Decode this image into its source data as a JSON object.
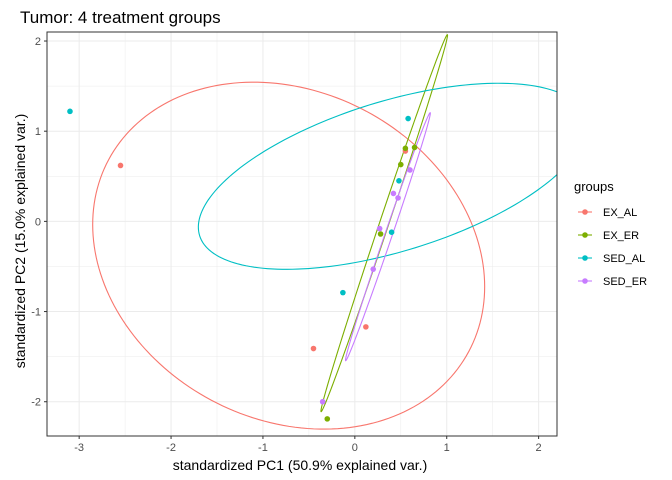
{
  "chart_data": {
    "type": "scatter",
    "title": "Tumor: 4 treatment groups",
    "xlabel": "standardized PC1 (50.9% explained var.)",
    "ylabel": "standardized PC2 (15.0% explained var.)",
    "xlim": [
      -3.35,
      2.2
    ],
    "ylim": [
      -2.38,
      2.1
    ],
    "x_ticks": [
      -3,
      -2,
      -1,
      0,
      1,
      2
    ],
    "y_ticks": [
      -2,
      -1,
      0,
      1,
      2
    ],
    "grid": true,
    "legend_title": "groups",
    "legend_position": "right",
    "series": [
      {
        "name": "EX_AL",
        "color": "#F8766D",
        "points": [
          [
            -2.55,
            0.62
          ],
          [
            -0.45,
            -1.41
          ],
          [
            0.12,
            -1.17
          ],
          [
            0.55,
            0.78
          ]
        ],
        "ellipse": {
          "cx": -0.72,
          "cy": -0.38,
          "rx": 2.23,
          "ry": 1.81,
          "angle": -30
        }
      },
      {
        "name": "EX_ER",
        "color": "#7CAE00",
        "points": [
          [
            -0.3,
            -2.19
          ],
          [
            0.28,
            -0.14
          ],
          [
            0.5,
            0.63
          ],
          [
            0.55,
            0.81
          ],
          [
            0.65,
            0.82
          ]
        ],
        "ellipse": {
          "cx": 0.32,
          "cy": -0.02,
          "rx": 2.2,
          "ry": 0.05,
          "angle": 71.8
        }
      },
      {
        "name": "SED_AL",
        "color": "#00BFC4",
        "points": [
          [
            -3.1,
            1.22
          ],
          [
            -0.13,
            -0.79
          ],
          [
            0.4,
            -0.12
          ],
          [
            0.48,
            0.45
          ],
          [
            0.58,
            1.14
          ]
        ],
        "ellipse": {
          "cx": 0.41,
          "cy": 0.5,
          "rx": 2.2,
          "ry": 0.83,
          "angle": 17.5
        }
      },
      {
        "name": "SED_ER",
        "color": "#C77CFF",
        "points": [
          [
            -0.35,
            -2.0
          ],
          [
            0.2,
            -0.53
          ],
          [
            0.27,
            -0.08
          ],
          [
            0.42,
            0.31
          ],
          [
            0.47,
            0.26
          ],
          [
            0.6,
            0.57
          ]
        ],
        "ellipse": {
          "cx": 0.36,
          "cy": -0.17,
          "rx": 1.45,
          "ry": 0.04,
          "angle": 71.5
        }
      }
    ]
  }
}
